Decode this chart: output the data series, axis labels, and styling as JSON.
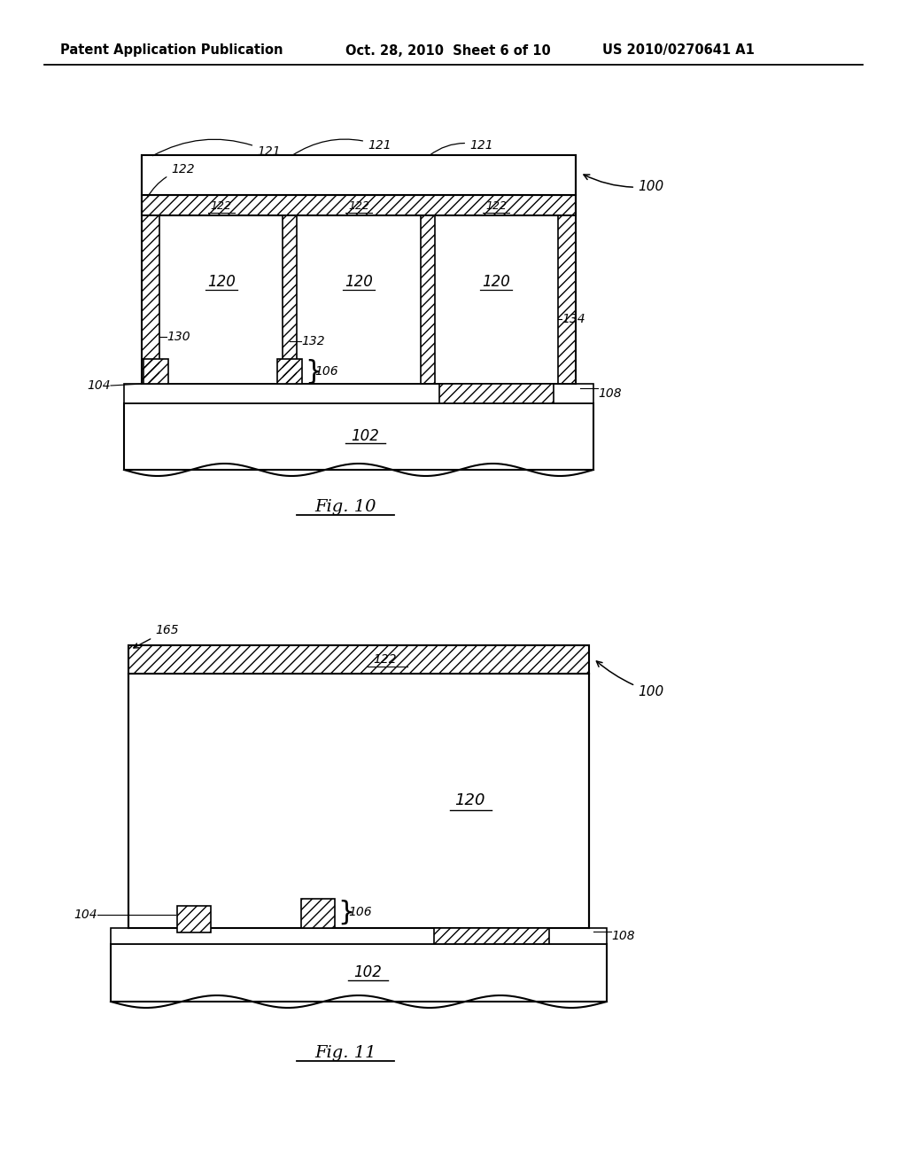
{
  "bg_color": "#ffffff",
  "header_left": "Patent Application Publication",
  "header_date": "Oct. 28, 2010  Sheet 6 of 10",
  "header_patent": "US 2010/0270641 A1",
  "fig1_caption": "Fig. 10",
  "fig2_caption": "Fig. 11"
}
